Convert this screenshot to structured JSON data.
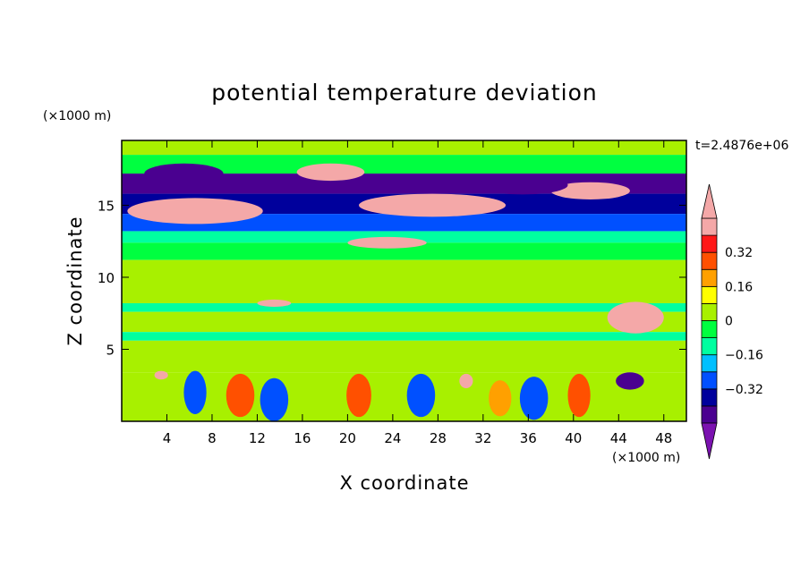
{
  "chart_data": {
    "type": "heatmap",
    "title": "potential temperature deviation",
    "xlabel": "X coordinate",
    "ylabel": "Z coordinate",
    "x_unit": "(×1000 m)",
    "y_unit": "(×1000 m)",
    "time_label": "t=2.4876e+06",
    "xlim": [
      0,
      50
    ],
    "ylim": [
      0,
      19.5
    ],
    "x_ticks": [
      4,
      8,
      12,
      16,
      20,
      24,
      28,
      32,
      36,
      40,
      44,
      48
    ],
    "y_ticks": [
      5,
      10,
      15
    ],
    "colorbar": {
      "levels": [
        -0.48,
        -0.4,
        -0.32,
        -0.24,
        -0.16,
        -0.08,
        0,
        0.08,
        0.16,
        0.24,
        0.32,
        0.4,
        0.48
      ],
      "tick_labels": [
        "0.32",
        "0.16",
        "0",
        "−0.16",
        "−0.32"
      ],
      "tick_values": [
        0.32,
        0.16,
        0,
        -0.16,
        -0.32
      ],
      "colors": [
        "#7b12b0",
        "#4a0090",
        "#00009c",
        "#0050ff",
        "#00c0ff",
        "#00ffa0",
        "#00ff40",
        "#a8f000",
        "#ffff00",
        "#ffa000",
        "#ff5000",
        "#ff1818",
        "#f4a8a8"
      ],
      "extend": "both"
    },
    "bands": [
      {
        "z": [
          18.5,
          19.5
        ],
        "value": 0.04
      },
      {
        "z": [
          17.2,
          18.5
        ],
        "value": -0.05
      },
      {
        "z": [
          15.8,
          17.2
        ],
        "value": -0.42
      },
      {
        "z": [
          14.4,
          15.8
        ],
        "value": -0.34
      },
      {
        "z": [
          13.2,
          14.4
        ],
        "value": -0.27
      },
      {
        "z": [
          12.4,
          13.2
        ],
        "value": -0.1
      },
      {
        "z": [
          11.2,
          12.4
        ],
        "value": -0.02
      },
      {
        "z": [
          8.2,
          11.2
        ],
        "value": 0.03
      },
      {
        "z": [
          7.6,
          8.2
        ],
        "value": -0.1
      },
      {
        "z": [
          6.2,
          7.6
        ],
        "value": 0.02
      },
      {
        "z": [
          5.6,
          6.2
        ],
        "value": -0.1
      },
      {
        "z": [
          3.4,
          5.6
        ],
        "value": 0.03
      },
      {
        "z": [
          0,
          3.4
        ],
        "value": 0.06
      }
    ],
    "features": [
      {
        "x": 6.5,
        "z": 14.6,
        "w": 12,
        "h": 1.8,
        "value": 0.46
      },
      {
        "x": 27.5,
        "z": 15.0,
        "w": 13,
        "h": 1.6,
        "value": 0.46
      },
      {
        "x": 18.5,
        "z": 17.3,
        "w": 6,
        "h": 1.2,
        "value": 0.46
      },
      {
        "x": 41.5,
        "z": 16.0,
        "w": 7,
        "h": 1.2,
        "value": 0.4
      },
      {
        "x": 23.5,
        "z": 12.4,
        "w": 7,
        "h": 0.8,
        "value": 0.4
      },
      {
        "x": 45.5,
        "z": 7.2,
        "w": 5,
        "h": 2.2,
        "value": 0.46
      },
      {
        "x": 13.5,
        "z": 8.2,
        "w": 3,
        "h": 0.5,
        "value": 0.44
      },
      {
        "x": 5.5,
        "z": 17.2,
        "w": 7,
        "h": 1.4,
        "value": -0.45
      },
      {
        "x": 35.5,
        "z": 16.4,
        "w": 8,
        "h": 1.3,
        "value": -0.45
      },
      {
        "x": 3.5,
        "z": 3.2,
        "w": 1.2,
        "h": 0.6,
        "value": 0.44
      },
      {
        "x": 30.5,
        "z": 2.8,
        "w": 1.2,
        "h": 1.0,
        "value": 0.44
      },
      {
        "x": 10.5,
        "z": 1.8,
        "w": 2.5,
        "h": 3.0,
        "value": 0.3
      },
      {
        "x": 13.5,
        "z": 1.5,
        "w": 2.5,
        "h": 3.0,
        "value": -0.3
      },
      {
        "x": 21.0,
        "z": 1.8,
        "w": 2.2,
        "h": 3.0,
        "value": 0.26
      },
      {
        "x": 26.5,
        "z": 1.8,
        "w": 2.5,
        "h": 3.0,
        "value": -0.3
      },
      {
        "x": 36.5,
        "z": 1.6,
        "w": 2.5,
        "h": 3.0,
        "value": -0.28
      },
      {
        "x": 40.5,
        "z": 1.8,
        "w": 2.0,
        "h": 3.0,
        "value": 0.3
      },
      {
        "x": 45.0,
        "z": 2.8,
        "w": 2.5,
        "h": 1.2,
        "value": -0.42
      },
      {
        "x": 6.5,
        "z": 2.0,
        "w": 2.0,
        "h": 3.0,
        "value": -0.3
      },
      {
        "x": 33.5,
        "z": 1.6,
        "w": 2.0,
        "h": 2.5,
        "value": 0.22
      }
    ]
  }
}
